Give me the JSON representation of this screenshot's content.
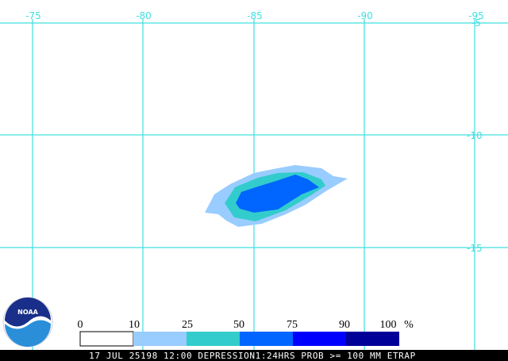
{
  "map": {
    "longitude_labels": [
      "-75",
      "-80",
      "-85",
      "-90",
      "-95"
    ],
    "latitude_labels": [
      "-5",
      "-10",
      "-15"
    ]
  },
  "legend": {
    "labels": [
      "0",
      "10",
      "25",
      "50",
      "75",
      "90",
      "100"
    ],
    "unit": "%"
  },
  "logo": "NOAA",
  "footer": "17 JUL 25198 12:00 DEPRESSION1:24HRS PROB >= 100 MM ETRAP"
}
